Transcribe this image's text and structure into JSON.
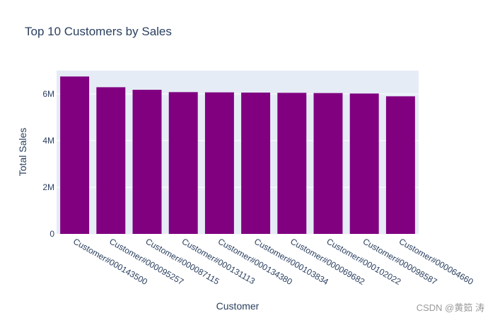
{
  "chart_data": {
    "type": "bar",
    "title": "Top 10 Customers by Sales",
    "xlabel": "Customer",
    "ylabel": "Total Sales",
    "categories": [
      "Customer#000143500",
      "Customer#000095257",
      "Customer#000087115",
      "Customer#000131113",
      "Customer#000134380",
      "Customer#000103834",
      "Customer#000069682",
      "Customer#000102022",
      "Customer#000098587",
      "Customer#000064660"
    ],
    "values": [
      6750000,
      6290000,
      6180000,
      6080000,
      6070000,
      6060000,
      6050000,
      6040000,
      6020000,
      5900000
    ],
    "ylim": [
      0,
      7000000
    ],
    "yticks": [
      0,
      2000000,
      4000000,
      6000000
    ],
    "ytick_labels": [
      "0",
      "2M",
      "4M",
      "6M"
    ],
    "grid": true,
    "bar_color": "#800080",
    "plot_background": "#e5ecf6"
  },
  "watermark": "CSDN @黄筎 涛"
}
